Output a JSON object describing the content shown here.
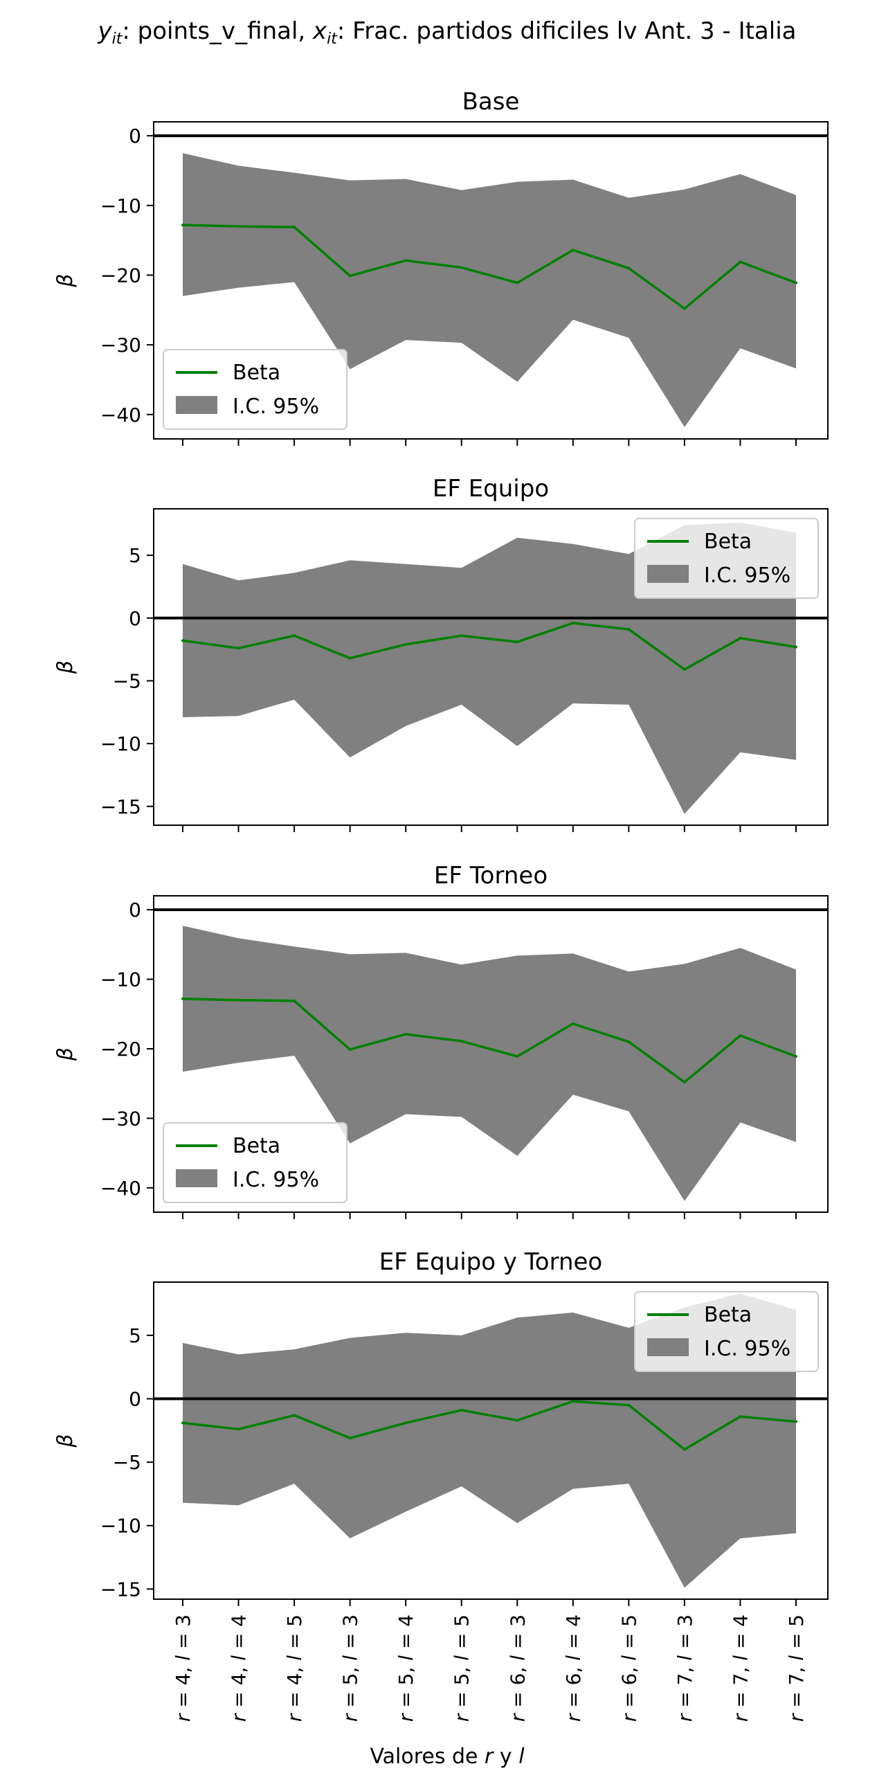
{
  "suptitle": {
    "parts": [
      {
        "t": "y",
        "style": "italic"
      },
      {
        "t": "it",
        "style": "italic",
        "sub": true
      },
      {
        "t": ": points_v_final, ",
        "style": "normal"
      },
      {
        "t": "x",
        "style": "italic"
      },
      {
        "t": "it",
        "style": "italic",
        "sub": true
      },
      {
        "t": ": Frac. partidos dificiles lv Ant. 3 - Italia",
        "style": "normal"
      }
    ]
  },
  "xlabel": {
    "parts": [
      {
        "t": "Valores de ",
        "style": "normal"
      },
      {
        "t": "r",
        "style": "italic"
      },
      {
        "t": " y ",
        "style": "normal"
      },
      {
        "t": "l",
        "style": "italic"
      }
    ]
  },
  "ylabel": "β",
  "legend": {
    "line_label": "Beta",
    "band_label": "I.C. 95%"
  },
  "colors": {
    "line": "#008000",
    "band": "#808080",
    "zero_line": "#000000",
    "frame": "#000000"
  },
  "chart_data": [
    {
      "type": "line",
      "title": "Base",
      "categories": [
        "r = 4, l = 3",
        "r = 4, l = 4",
        "r = 4, l = 5",
        "r = 5, l = 3",
        "r = 5, l = 4",
        "r = 5, l = 5",
        "r = 6, l = 3",
        "r = 6, l = 4",
        "r = 6, l = 5",
        "r = 7, l = 3",
        "r = 7, l = 4",
        "r = 7, l = 5"
      ],
      "series": [
        {
          "name": "Beta",
          "values": [
            -12.8,
            -13.0,
            -13.1,
            -20.1,
            -17.9,
            -18.9,
            -21.1,
            -16.4,
            -19.0,
            -24.8,
            -18.1,
            -21.1
          ]
        },
        {
          "name": "I.C. 95%",
          "lower": [
            -23.0,
            -21.8,
            -21.0,
            -33.5,
            -29.3,
            -29.7,
            -35.3,
            -26.4,
            -29.0,
            -41.8,
            -30.5,
            -33.4
          ],
          "upper": [
            -2.5,
            -4.3,
            -5.3,
            -6.4,
            -6.2,
            -7.8,
            -6.6,
            -6.3,
            -8.9,
            -7.7,
            -5.5,
            -8.5
          ]
        }
      ],
      "ylim": [
        -43.5,
        2.0
      ],
      "yticks": [
        0,
        -10,
        -20,
        -30,
        -40
      ],
      "legend_position": "lower-left",
      "hline": 0
    },
    {
      "type": "line",
      "title": "EF Equipo",
      "categories": [
        "r = 4, l = 3",
        "r = 4, l = 4",
        "r = 4, l = 5",
        "r = 5, l = 3",
        "r = 5, l = 4",
        "r = 5, l = 5",
        "r = 6, l = 3",
        "r = 6, l = 4",
        "r = 6, l = 5",
        "r = 7, l = 3",
        "r = 7, l = 4",
        "r = 7, l = 5"
      ],
      "series": [
        {
          "name": "Beta",
          "values": [
            -1.8,
            -2.4,
            -1.4,
            -3.2,
            -2.1,
            -1.4,
            -1.9,
            -0.4,
            -0.9,
            -4.1,
            -1.6,
            -2.3
          ]
        },
        {
          "name": "I.C. 95%",
          "lower": [
            -7.9,
            -7.8,
            -6.5,
            -11.1,
            -8.6,
            -6.9,
            -10.2,
            -6.8,
            -6.9,
            -15.6,
            -10.7,
            -11.3
          ],
          "upper": [
            4.3,
            3.0,
            3.6,
            4.6,
            4.3,
            4.0,
            6.4,
            5.9,
            5.1,
            7.4,
            7.6,
            6.8
          ]
        }
      ],
      "ylim": [
        -16.5,
        8.7
      ],
      "yticks": [
        5,
        0,
        -5,
        -10,
        -15
      ],
      "legend_position": "upper-right",
      "hline": 0
    },
    {
      "type": "line",
      "title": "EF Torneo",
      "categories": [
        "r = 4, l = 3",
        "r = 4, l = 4",
        "r = 4, l = 5",
        "r = 5, l = 3",
        "r = 5, l = 4",
        "r = 5, l = 5",
        "r = 6, l = 3",
        "r = 6, l = 4",
        "r = 6, l = 5",
        "r = 7, l = 3",
        "r = 7, l = 4",
        "r = 7, l = 5"
      ],
      "series": [
        {
          "name": "Beta",
          "values": [
            -12.8,
            -13.0,
            -13.1,
            -20.1,
            -17.9,
            -18.9,
            -21.1,
            -16.4,
            -19.0,
            -24.8,
            -18.1,
            -21.1
          ]
        },
        {
          "name": "I.C. 95%",
          "lower": [
            -23.3,
            -22.0,
            -21.0,
            -33.6,
            -29.4,
            -29.8,
            -35.4,
            -26.6,
            -29.0,
            -41.9,
            -30.6,
            -33.4
          ],
          "upper": [
            -2.3,
            -4.1,
            -5.3,
            -6.4,
            -6.2,
            -7.9,
            -6.6,
            -6.3,
            -8.9,
            -7.8,
            -5.5,
            -8.6
          ]
        }
      ],
      "ylim": [
        -43.5,
        2.0
      ],
      "yticks": [
        0,
        -10,
        -20,
        -30,
        -40
      ],
      "legend_position": "lower-left",
      "hline": 0
    },
    {
      "type": "line",
      "title": "EF Equipo y Torneo",
      "categories": [
        "r = 4, l = 3",
        "r = 4, l = 4",
        "r = 4, l = 5",
        "r = 5, l = 3",
        "r = 5, l = 4",
        "r = 5, l = 5",
        "r = 6, l = 3",
        "r = 6, l = 4",
        "r = 6, l = 5",
        "r = 7, l = 3",
        "r = 7, l = 4",
        "r = 7, l = 5"
      ],
      "series": [
        {
          "name": "Beta",
          "values": [
            -1.9,
            -2.4,
            -1.3,
            -3.1,
            -1.9,
            -0.9,
            -1.7,
            -0.2,
            -0.5,
            -4.0,
            -1.4,
            -1.8
          ]
        },
        {
          "name": "I.C. 95%",
          "lower": [
            -8.2,
            -8.4,
            -6.7,
            -11.0,
            -8.9,
            -6.9,
            -9.8,
            -7.1,
            -6.7,
            -14.9,
            -11.0,
            -10.6
          ],
          "upper": [
            4.4,
            3.5,
            3.9,
            4.8,
            5.2,
            5.0,
            6.4,
            6.8,
            5.6,
            7.2,
            8.3,
            7.0
          ]
        }
      ],
      "ylim": [
        -15.8,
        9.2
      ],
      "yticks": [
        5,
        0,
        -5,
        -10,
        -15
      ],
      "legend_position": "upper-right",
      "hline": 0
    }
  ]
}
